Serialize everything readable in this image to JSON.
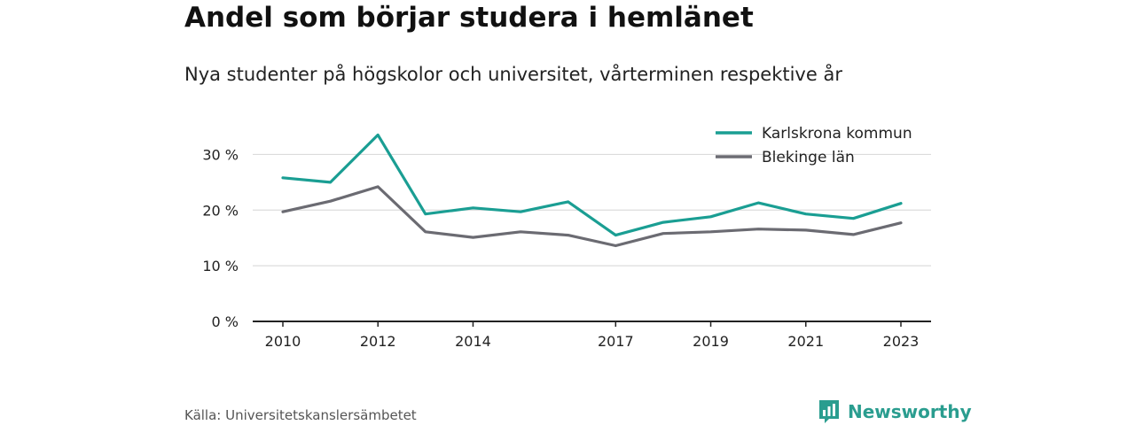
{
  "header": {
    "title": "Andel som börjar studera i hemlänet",
    "subtitle": "Nya studenter på högskolor och universitet, vårterminen respektive år"
  },
  "footer": {
    "source": "Källa: Universitetskanslersämbetet",
    "brand_name": "Newsworthy",
    "brand_icon": "bar-chart-logo-icon"
  },
  "colors": {
    "karlskrona": "#1a9e93",
    "blekinge": "#6b6b72",
    "grid": "#dcdcdc",
    "axis": "#222222",
    "brand": "#2a9d8f"
  },
  "chart_data": {
    "type": "line",
    "x": [
      2010,
      2011,
      2012,
      2013,
      2014,
      2015,
      2016,
      2017,
      2018,
      2019,
      2020,
      2021,
      2022,
      2023
    ],
    "x_tick_labels": [
      "2010",
      "2012",
      "2014",
      "2017",
      "2019",
      "2021",
      "2023"
    ],
    "y_ticks": [
      0,
      10,
      20,
      30
    ],
    "y_tick_labels": [
      "0 %",
      "10 %",
      "20 %",
      "30 %"
    ],
    "ylim": [
      0,
      35
    ],
    "grid": true,
    "legend_position": "top-right",
    "series": [
      {
        "name": "Karlskrona kommun",
        "color": "#1a9e93",
        "values": [
          25.8,
          25.0,
          33.5,
          19.3,
          20.4,
          19.7,
          21.5,
          15.5,
          17.8,
          18.8,
          21.3,
          19.3,
          18.5,
          21.2
        ]
      },
      {
        "name": "Blekinge län",
        "color": "#6b6b72",
        "values": [
          19.7,
          21.6,
          24.2,
          16.1,
          15.1,
          16.1,
          15.5,
          13.6,
          15.8,
          16.1,
          16.6,
          16.4,
          15.6,
          17.7
        ]
      }
    ]
  }
}
